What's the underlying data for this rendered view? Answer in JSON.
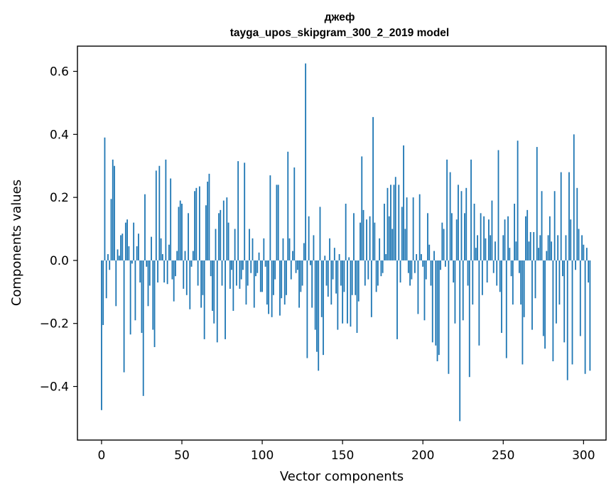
{
  "chart_data": {
    "type": "bar",
    "title": "джеф",
    "subtitle": "tayga_upos_skipgram_300_2_2019 model",
    "xlabel": "Vector components",
    "ylabel": "Components values",
    "xlim": [
      -15,
      314
    ],
    "ylim": [
      -0.57,
      0.68
    ],
    "xticks": [
      0,
      50,
      100,
      150,
      200,
      250,
      300
    ],
    "yticks": [
      -0.4,
      -0.2,
      0.0,
      0.2,
      0.4,
      0.6
    ],
    "ytick_labels": [
      "−0.4",
      "−0.2",
      "0.0",
      "0.2",
      "0.4",
      "0.6"
    ],
    "grid": false,
    "bar_color": "#1f77b4",
    "series": [
      {
        "values": [
          -0.475,
          -0.205,
          0.39,
          -0.12,
          0.02,
          -0.03,
          0.195,
          0.32,
          0.3,
          -0.145,
          0.035,
          0.015,
          0.08,
          0.085,
          -0.355,
          0.12,
          0.13,
          0.045,
          -0.235,
          -0.01,
          0.12,
          -0.19,
          0.045,
          0.085,
          -0.07,
          -0.23,
          -0.43,
          0.21,
          -0.02,
          -0.145,
          -0.08,
          0.075,
          -0.22,
          -0.275,
          0.285,
          -0.07,
          0.3,
          0.07,
          0.02,
          -0.07,
          0.32,
          -0.075,
          0.05,
          0.26,
          -0.06,
          -0.13,
          -0.05,
          0.03,
          0.17,
          0.19,
          0.18,
          -0.09,
          0.03,
          -0.11,
          0.15,
          -0.155,
          -0.02,
          0.03,
          0.22,
          0.23,
          -0.08,
          0.235,
          -0.15,
          -0.11,
          -0.25,
          0.175,
          0.25,
          0.275,
          -0.05,
          -0.16,
          -0.2,
          0.1,
          -0.26,
          0.15,
          0.16,
          -0.08,
          0.19,
          -0.25,
          0.2,
          0.12,
          -0.09,
          -0.03,
          -0.16,
          0.1,
          -0.08,
          0.315,
          -0.09,
          -0.06,
          -0.03,
          0.31,
          -0.14,
          -0.08,
          0.1,
          -0.04,
          0.07,
          -0.15,
          -0.05,
          -0.04,
          0.025,
          -0.1,
          -0.1,
          0.07,
          -0.02,
          -0.14,
          -0.17,
          0.27,
          -0.18,
          -0.11,
          -0.06,
          0.24,
          0.24,
          -0.175,
          -0.12,
          0.07,
          -0.14,
          -0.11,
          0.345,
          0.07,
          -0.06,
          0.03,
          0.295,
          -0.04,
          -0.03,
          -0.15,
          -0.1,
          -0.08,
          0.055,
          0.625,
          -0.31,
          0.14,
          -0.015,
          -0.15,
          0.08,
          -0.22,
          -0.29,
          -0.35,
          0.17,
          -0.18,
          -0.3,
          0.015,
          -0.08,
          -0.115,
          0.07,
          -0.14,
          -0.06,
          0.04,
          -0.105,
          -0.22,
          0.02,
          -0.08,
          -0.2,
          -0.1,
          0.18,
          -0.2,
          0.01,
          -0.21,
          -0.11,
          0.15,
          -0.11,
          -0.23,
          -0.13,
          0.12,
          0.33,
          0.16,
          -0.08,
          0.13,
          -0.06,
          0.14,
          -0.18,
          0.455,
          0.12,
          -0.1,
          -0.08,
          0.07,
          -0.05,
          -0.04,
          0.18,
          0.02,
          0.23,
          0.14,
          0.24,
          0.1,
          0.24,
          0.265,
          -0.25,
          0.24,
          -0.07,
          0.17,
          0.365,
          0.1,
          0.2,
          -0.04,
          -0.08,
          -0.06,
          0.2,
          -0.04,
          0.02,
          -0.17,
          0.21,
          0.02,
          -0.02,
          -0.19,
          -0.06,
          0.15,
          0.05,
          -0.08,
          -0.26,
          0.03,
          -0.27,
          -0.32,
          -0.3,
          -0.03,
          0.12,
          0.1,
          -0.02,
          0.32,
          -0.36,
          0.28,
          0.15,
          -0.07,
          -0.2,
          0.13,
          0.24,
          -0.51,
          0.22,
          -0.19,
          0.15,
          0.23,
          -0.08,
          -0.37,
          0.32,
          -0.14,
          0.18,
          0.04,
          0.08,
          -0.27,
          0.15,
          -0.11,
          0.14,
          0.07,
          -0.07,
          0.13,
          0.08,
          0.19,
          -0.04,
          0.06,
          -0.08,
          0.35,
          -0.1,
          -0.23,
          0.08,
          0.13,
          -0.31,
          0.14,
          0.04,
          -0.05,
          -0.14,
          0.18,
          0.06,
          0.38,
          -0.04,
          -0.14,
          -0.33,
          -0.18,
          0.14,
          0.16,
          0.06,
          0.09,
          -0.22,
          0.09,
          -0.12,
          0.36,
          0.04,
          0.08,
          0.22,
          -0.24,
          -0.28,
          0.03,
          0.08,
          0.14,
          0.06,
          -0.32,
          0.22,
          -0.2,
          0.08,
          -0.14,
          0.28,
          -0.05,
          -0.26,
          0.08,
          -0.38,
          0.28,
          0.13,
          -0.33,
          0.4,
          -0.03,
          0.23,
          0.1,
          -0.24,
          0.08,
          0.05,
          -0.36,
          0.04,
          -0.07,
          -0.35
        ]
      }
    ]
  }
}
